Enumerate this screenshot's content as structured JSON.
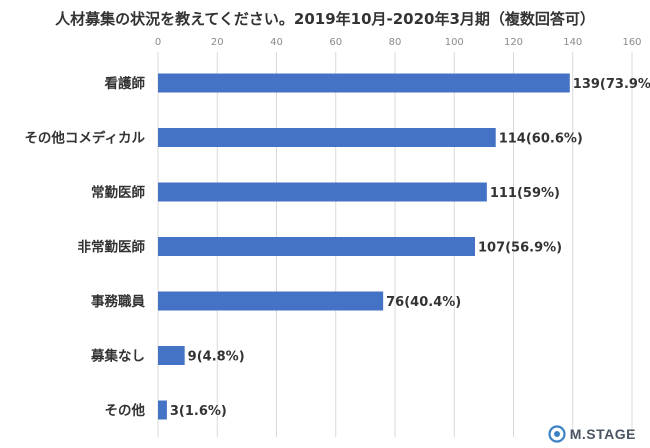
{
  "chart_data": {
    "type": "bar",
    "orientation": "horizontal",
    "title": "人材募集の状況を教えてください。2019年10月-2020年3月期（複数回答可）",
    "categories": [
      "看護師",
      "その他コメディカル",
      "常勤医師",
      "非常勤医師",
      "事務職員",
      "募集なし",
      "その他"
    ],
    "values": [
      139,
      114,
      111,
      107,
      76,
      9,
      3
    ],
    "data_labels": [
      "139(73.9%)",
      "114(60.6%)",
      "111(59%)",
      "107(56.9%)",
      "76(40.4%)",
      "9(4.8%)",
      "3(1.6%)"
    ],
    "xlim": [
      0,
      160
    ],
    "x_ticks": [
      "0",
      "20",
      "40",
      "60",
      "80",
      "100",
      "120",
      "140",
      "160"
    ],
    "x_axis_position": "top",
    "grid": true,
    "bar_color": "#4472C4",
    "grid_color": "#d9d9d9"
  },
  "logo": {
    "text": "M.STAGE",
    "color": "#3b82c4"
  }
}
